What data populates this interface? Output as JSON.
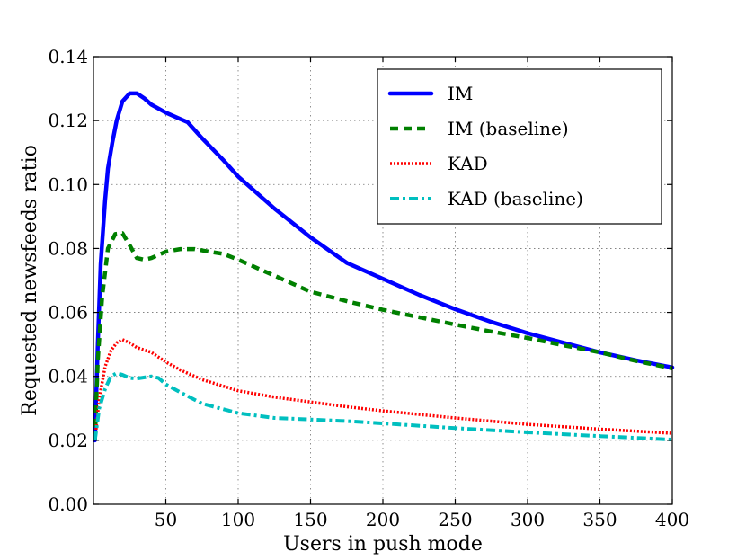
{
  "chart_data": {
    "type": "line",
    "title": "",
    "xlabel": "Users in push mode",
    "ylabel": "Requested newsfeeds ratio",
    "xlim": [
      0,
      400
    ],
    "ylim": [
      0.0,
      0.14
    ],
    "grid": true,
    "legend_position": "top-right",
    "x_ticks": [
      50,
      100,
      150,
      200,
      250,
      300,
      350,
      400
    ],
    "x_tick_labels": [
      "50",
      "100",
      "150",
      "200",
      "250",
      "300",
      "350",
      "400"
    ],
    "y_ticks": [
      0.0,
      0.02,
      0.04,
      0.06,
      0.08,
      0.1,
      0.12,
      0.14
    ],
    "y_tick_labels": [
      "0.00",
      "0.02",
      "0.04",
      "0.06",
      "0.08",
      "0.10",
      "0.12",
      "0.14"
    ],
    "series": [
      {
        "name": "IM",
        "color": "#0000ff",
        "style": "solid",
        "x": [
          1,
          3,
          5,
          8,
          10,
          13,
          16,
          20,
          25,
          30,
          35,
          40,
          50,
          60,
          65,
          75,
          90,
          100,
          125,
          150,
          175,
          200,
          225,
          250,
          275,
          300,
          325,
          350,
          375,
          400
        ],
        "y": [
          0.02,
          0.05,
          0.075,
          0.095,
          0.105,
          0.113,
          0.12,
          0.126,
          0.1285,
          0.1285,
          0.127,
          0.125,
          0.1225,
          0.1205,
          0.1195,
          0.1145,
          0.1075,
          0.1025,
          0.0925,
          0.0835,
          0.0755,
          0.0705,
          0.0655,
          0.061,
          0.057,
          0.0535,
          0.0505,
          0.0475,
          0.045,
          0.0428
        ]
      },
      {
        "name": "IM (baseline)",
        "color": "#008000",
        "style": "dashed",
        "x": [
          1,
          3,
          6,
          10,
          15,
          20,
          25,
          30,
          35,
          40,
          50,
          60,
          70,
          80,
          90,
          100,
          125,
          150,
          175,
          200,
          225,
          250,
          275,
          300,
          325,
          350,
          375,
          400
        ],
        "y": [
          0.02,
          0.045,
          0.065,
          0.08,
          0.0845,
          0.0848,
          0.081,
          0.077,
          0.0765,
          0.077,
          0.079,
          0.0798,
          0.0798,
          0.079,
          0.0783,
          0.0765,
          0.0715,
          0.0665,
          0.0635,
          0.0608,
          0.0585,
          0.0562,
          0.054,
          0.052,
          0.0497,
          0.0475,
          0.0448,
          0.0425
        ]
      },
      {
        "name": "KAD",
        "color": "#ff0000",
        "style": "dotted",
        "x": [
          1,
          4,
          8,
          12,
          16,
          20,
          25,
          30,
          40,
          50,
          60,
          75,
          100,
          125,
          150,
          175,
          200,
          250,
          300,
          350,
          400
        ],
        "y": [
          0.02,
          0.033,
          0.043,
          0.048,
          0.0505,
          0.0515,
          0.0505,
          0.049,
          0.0475,
          0.0445,
          0.042,
          0.039,
          0.0355,
          0.0335,
          0.032,
          0.0305,
          0.0292,
          0.027,
          0.025,
          0.0235,
          0.0222
        ]
      },
      {
        "name": "KAD (baseline)",
        "color": "#00bfbf",
        "style": "dashdot",
        "x": [
          1,
          4,
          8,
          12,
          16,
          20,
          25,
          30,
          40,
          45,
          50,
          60,
          75,
          100,
          125,
          150,
          175,
          200,
          250,
          300,
          350,
          400
        ],
        "y": [
          0.02,
          0.03,
          0.036,
          0.04,
          0.041,
          0.0405,
          0.0395,
          0.0393,
          0.04,
          0.0395,
          0.0375,
          0.035,
          0.0315,
          0.0285,
          0.027,
          0.0265,
          0.026,
          0.0253,
          0.0238,
          0.0225,
          0.0213,
          0.0202
        ]
      }
    ]
  }
}
